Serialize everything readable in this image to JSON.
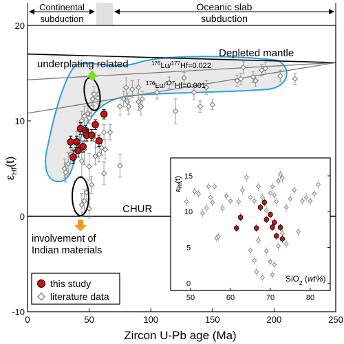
{
  "chart_data": [
    {
      "type": "scatter",
      "xlabel": "Zircon U-Pb age (Ma)",
      "ylabel": "εHf(t)",
      "xlim": [
        0,
        250
      ],
      "ylim": [
        -10,
        20
      ],
      "xticks": [
        0,
        50,
        100,
        150,
        200,
        250
      ],
      "yticks": [
        -10,
        0,
        10,
        20
      ],
      "grid": false,
      "legend_position": "bottom-left",
      "legend": [
        {
          "name": "this study",
          "marker": "circle",
          "color": "#cc1111"
        },
        {
          "name": "literature data",
          "marker": "diamond",
          "color": "#888888"
        }
      ],
      "top_labels": {
        "left": "Continental subduction",
        "right": "Oceanic slab subduction"
      },
      "reference_lines": [
        {
          "label": "Depleted mantle",
          "from": [
            0,
            17.0
          ],
          "to": [
            250,
            16.1
          ]
        },
        {
          "label": "176Lu/177Hf=0.022",
          "from": [
            0,
            14.3
          ],
          "to": [
            250,
            16.1
          ]
        },
        {
          "label": "176Lu/177Hf=0.001",
          "from": [
            0,
            10.8
          ],
          "to": [
            250,
            16.1
          ]
        },
        {
          "label": "CHUR",
          "value": 0
        }
      ],
      "annotations": {
        "underplating": "underplating related",
        "involvement_line1": "involvement of",
        "involvement_line2": "Indian materials"
      },
      "series": [
        {
          "name": "this study",
          "points": [
            [
              35,
              7.8,
              0.6
            ],
            [
              37,
              6.2,
              0.7
            ],
            [
              40,
              7.8,
              0.6
            ],
            [
              41,
              6.9,
              0.7
            ],
            [
              43,
              9.2,
              0.6
            ],
            [
              45,
              7.3,
              0.6
            ],
            [
              47,
              9.0,
              0.5
            ],
            [
              48,
              8.5,
              0.6
            ],
            [
              52,
              8.5,
              0.6
            ],
            [
              55,
              9.6,
              0.5
            ],
            [
              58,
              7.9,
              0.6
            ],
            [
              62,
              10.7,
              0.5
            ]
          ]
        },
        {
          "name": "literature data",
          "points": [
            [
              30,
              5.0,
              1.0
            ],
            [
              31,
              4.6,
              1.0
            ],
            [
              33,
              5.5,
              1.2
            ],
            [
              35,
              6.5,
              1.0
            ],
            [
              38,
              7.0,
              0.8
            ],
            [
              40,
              8.0,
              0.9
            ],
            [
              42,
              9.0,
              0.9
            ],
            [
              44,
              10.0,
              1.0
            ],
            [
              46,
              10.5,
              1.0
            ],
            [
              49,
              10.8,
              0.8
            ],
            [
              52,
              11.4,
              0.8
            ],
            [
              53,
              12.3,
              0.7
            ],
            [
              54,
              12.8,
              0.8
            ],
            [
              57,
              12.4,
              0.6
            ],
            [
              50,
              10.3,
              0.6
            ],
            [
              48,
              8.5,
              0.7
            ],
            [
              55,
              8.0,
              0.8
            ],
            [
              55,
              6.3,
              0.9
            ],
            [
              58,
              6.5,
              0.8
            ],
            [
              60,
              7.2,
              0.8
            ],
            [
              62,
              8.8,
              0.8
            ],
            [
              44,
              5.8,
              1.6
            ],
            [
              46,
              7.0,
              1.6
            ],
            [
              50,
              5.2,
              1.4
            ],
            [
              62,
              4.5,
              1.2
            ],
            [
              63,
              7.0,
              1.0
            ],
            [
              67,
              8.8,
              0.8
            ],
            [
              75,
              5.3,
              1.2
            ],
            [
              75,
              11.5,
              0.9
            ],
            [
              78,
              12.3,
              0.8
            ],
            [
              80,
              13.5,
              1.0
            ],
            [
              81,
              12.0,
              0.9
            ],
            [
              82,
              11.5,
              0.8
            ],
            [
              85,
              13.3,
              0.9
            ],
            [
              90,
              12.0,
              0.9
            ],
            [
              92,
              11.5,
              0.9
            ],
            [
              93,
              12.3,
              0.8
            ],
            [
              90,
              13.5,
              0.8
            ],
            [
              105,
              13.0,
              0.7
            ],
            [
              115,
              14.0,
              0.6
            ],
            [
              120,
              11.0,
              1.3
            ],
            [
              127,
              14.5,
              0.6
            ],
            [
              135,
              13.0,
              0.8
            ],
            [
              140,
              11.5,
              0.6
            ],
            [
              145,
              13.5,
              0.7
            ],
            [
              150,
              11.7,
              0.5
            ],
            [
              170,
              14.2,
              0.6
            ],
            [
              173,
              14.4,
              0.6
            ],
            [
              175,
              15.6,
              0.6
            ],
            [
              183,
              14.6,
              0.6
            ],
            [
              185,
              14.2,
              0.6
            ],
            [
              190,
              15.3,
              0.6
            ],
            [
              193,
              15.5,
              0.6
            ],
            [
              205,
              14.7,
              0.6
            ],
            [
              217,
              14.4,
              0.6
            ],
            [
              44,
              1.2,
              1.2
            ],
            [
              46,
              1.6,
              1.2
            ],
            [
              48,
              2.5,
              1.0
            ],
            [
              50,
              0.8,
              1.0
            ],
            [
              52,
              3.3,
              0.9
            ]
          ]
        }
      ]
    },
    {
      "type": "scatter",
      "xlabel": "SiO2 (wt%)",
      "ylabel": "εHf(t)",
      "xlim": [
        45,
        85
      ],
      "ylim": [
        -1,
        17.5
      ],
      "xticks": [
        50,
        60,
        70,
        80
      ],
      "yticks": [
        0,
        5,
        10,
        15
      ],
      "series": [
        {
          "name": "this study",
          "points": [
            [
              61.5,
              7.7
            ],
            [
              62.5,
              9.2
            ],
            [
              66.5,
              7.7
            ],
            [
              67.5,
              10.6
            ],
            [
              68.5,
              11.3
            ],
            [
              69,
              8.9
            ],
            [
              70,
              9.6
            ],
            [
              70.5,
              7.8
            ],
            [
              71,
              8.5
            ],
            [
              71.5,
              6.6
            ],
            [
              72.5,
              7.8
            ],
            [
              73,
              6.2
            ]
          ]
        },
        {
          "name": "literature data",
          "points": [
            [
              47,
              13.3
            ],
            [
              49,
              11.4
            ],
            [
              51,
              12.8
            ],
            [
              52,
              12.5
            ],
            [
              53,
              9.8
            ],
            [
              54,
              10.5
            ],
            [
              54.5,
              13.5
            ],
            [
              55,
              12.0
            ],
            [
              55.5,
              11.3
            ],
            [
              56,
              13.5
            ],
            [
              56.5,
              6.3
            ],
            [
              57,
              6.5
            ],
            [
              58,
              10.5
            ],
            [
              59,
              12.2
            ],
            [
              60,
              11.5
            ],
            [
              62,
              11.4
            ],
            [
              63,
              13.0
            ],
            [
              64,
              14.8
            ],
            [
              65,
              12.0
            ],
            [
              66,
              11.5
            ],
            [
              67,
              13.5
            ],
            [
              68,
              12.0
            ],
            [
              69,
              10.2
            ],
            [
              70,
              12.6
            ],
            [
              70.5,
              13.5
            ],
            [
              71,
              12.3
            ],
            [
              71.5,
              11.4
            ],
            [
              72,
              14.3
            ],
            [
              72.5,
              15.2
            ],
            [
              73,
              14.7
            ],
            [
              74,
              10.6
            ],
            [
              75,
              11.8
            ],
            [
              76,
              13.0
            ],
            [
              77,
              7.2
            ],
            [
              78,
              11.5
            ],
            [
              79,
              12.0
            ],
            [
              80,
              11.5
            ],
            [
              81,
              12.5
            ],
            [
              82,
              13.8
            ],
            [
              65,
              4.6
            ],
            [
              66,
              3.2
            ],
            [
              66.5,
              1.6
            ],
            [
              69,
              4.5
            ],
            [
              70,
              3.0
            ],
            [
              70.5,
              1.2
            ],
            [
              71,
              2.6
            ],
            [
              72,
              5.2
            ],
            [
              73,
              7.0
            ],
            [
              74,
              5.5
            ],
            [
              67,
              6.0
            ],
            [
              68,
              0.8
            ]
          ]
        }
      ]
    }
  ]
}
